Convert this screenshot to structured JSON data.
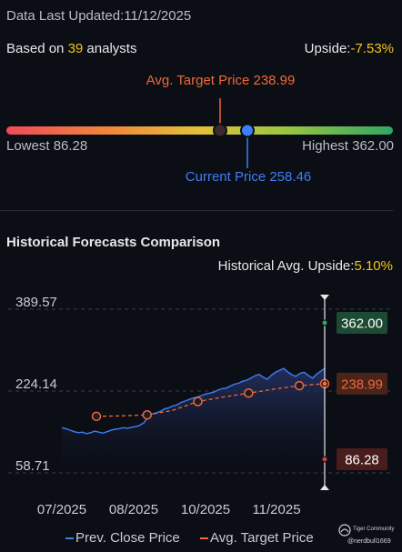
{
  "header": {
    "updated_label": "Data Last Updated:",
    "updated_date": "11/12/2025"
  },
  "analysts": {
    "prefix": "Based on ",
    "count": "39",
    "suffix": " analysts",
    "upside_label": "Upside:",
    "upside_value": "-7.53%"
  },
  "range": {
    "avg_target_label": "Avg. Target Price 238.99",
    "current_label": "Current Price 258.46",
    "lowest_label": "Lowest 86.28",
    "highest_label": "Highest 362.00",
    "low": 86.28,
    "high": 362.0,
    "avg_target": 238.99,
    "current": 258.46
  },
  "history": {
    "title": "Historical Forecasts Comparison",
    "upside_label": "Historical Avg. Upside:",
    "upside_value": "5.10%"
  },
  "legend": {
    "close_label": "Prev. Close Price",
    "target_label": "Avg. Target Price"
  },
  "watermark": {
    "brand": "Tiger Community",
    "user": "@nerdbull1669"
  },
  "colors": {
    "accent_orange": "#f0683c",
    "accent_blue": "#3f7ef5",
    "accent_yellow": "#f5c518",
    "gain_green": "#2fa765",
    "loss_red": "#d04040"
  },
  "chart_data": {
    "type": "line",
    "y_ticks": [
      "389.57",
      "224.14",
      "58.71"
    ],
    "ylim": [
      58.71,
      389.57
    ],
    "x_ticks": [
      "07/2025",
      "08/2025",
      "10/2025",
      "11/2025"
    ],
    "series": [
      {
        "name": "Prev. Close Price",
        "values": [
          150,
          148,
          145,
          142,
          140,
          141,
          138,
          140,
          143,
          141,
          139,
          142,
          145,
          147,
          148,
          150,
          149,
          151,
          152,
          155,
          160,
          172,
          178,
          180,
          183,
          188,
          190,
          194,
          196,
          201,
          204,
          207,
          210,
          212,
          215,
          218,
          220,
          222,
          226,
          229,
          230,
          234,
          238,
          240,
          244,
          246,
          250,
          255,
          258,
          252,
          248,
          256,
          262,
          266,
          270,
          263,
          257,
          254,
          260,
          262,
          256,
          250,
          258,
          264,
          270
        ]
      },
      {
        "name": "Avg. Target Price",
        "values": [
          173,
          174,
          176,
          185,
          203,
          212,
          220,
          228,
          235,
          238.99
        ]
      }
    ],
    "markers": [
      {
        "label": "362.00",
        "value": 362.0,
        "color": "#2fa765"
      },
      {
        "label": "238.99",
        "value": 238.99,
        "color": "#f0683c"
      },
      {
        "label": "86.28",
        "value": 86.28,
        "color": "#d04040"
      }
    ]
  }
}
